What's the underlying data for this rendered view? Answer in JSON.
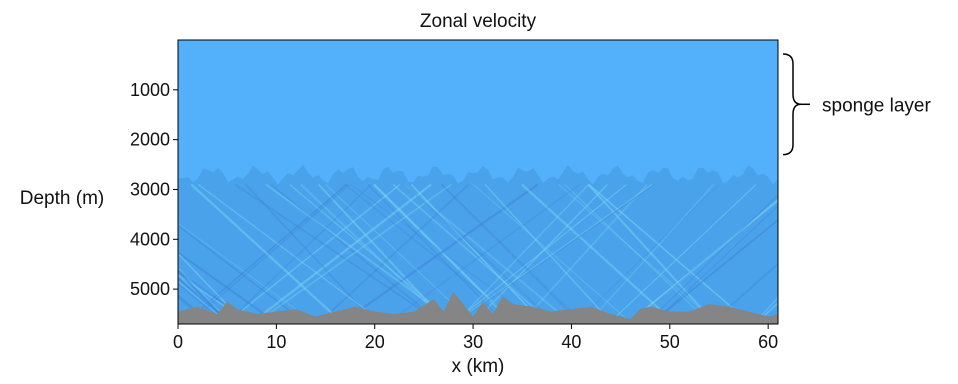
{
  "chart_data": {
    "type": "heatmap",
    "title": "Zonal velocity",
    "xlabel": "x (km)",
    "ylabel": "Depth (m)",
    "xlim": [
      0,
      61
    ],
    "ylim": [
      0,
      5700
    ],
    "y_inverted": true,
    "x_ticks": [
      0,
      10,
      20,
      30,
      40,
      50,
      60
    ],
    "x_tick_labels": [
      "0",
      "10",
      "20",
      "30",
      "40",
      "50",
      "60"
    ],
    "y_ticks": [
      1000,
      2000,
      3000,
      4000,
      5000
    ],
    "y_tick_labels": [
      "1000",
      "2000",
      "3000",
      "4000",
      "5000"
    ],
    "grid": false,
    "annotation": {
      "text": "sponge layer",
      "depth_range": [
        0,
        2300
      ]
    },
    "field_boundary_depth": 2700,
    "bathymetry": {
      "x": [
        0,
        2,
        4,
        5,
        6,
        8,
        10,
        12,
        14,
        16,
        18,
        20,
        22,
        24,
        26,
        27,
        28,
        29,
        30,
        31,
        32,
        33,
        34,
        36,
        38,
        40,
        42,
        44,
        46,
        47,
        48,
        50,
        52,
        54,
        56,
        58,
        60,
        61
      ],
      "depth": [
        5450,
        5350,
        5500,
        5250,
        5400,
        5500,
        5450,
        5400,
        5550,
        5450,
        5350,
        5450,
        5500,
        5450,
        5200,
        5450,
        5050,
        5300,
        5550,
        5250,
        5500,
        5150,
        5300,
        5350,
        5450,
        5400,
        5350,
        5500,
        5600,
        5400,
        5350,
        5450,
        5450,
        5300,
        5350,
        5450,
        5550,
        5500
      ]
    },
    "colors": {
      "upper_layer": "#53b0fa",
      "lower_layer": "#4aa3ea",
      "wave_light": "#7fd8f4",
      "wave_dark": "#3e82d6",
      "topography": "#858585"
    }
  }
}
